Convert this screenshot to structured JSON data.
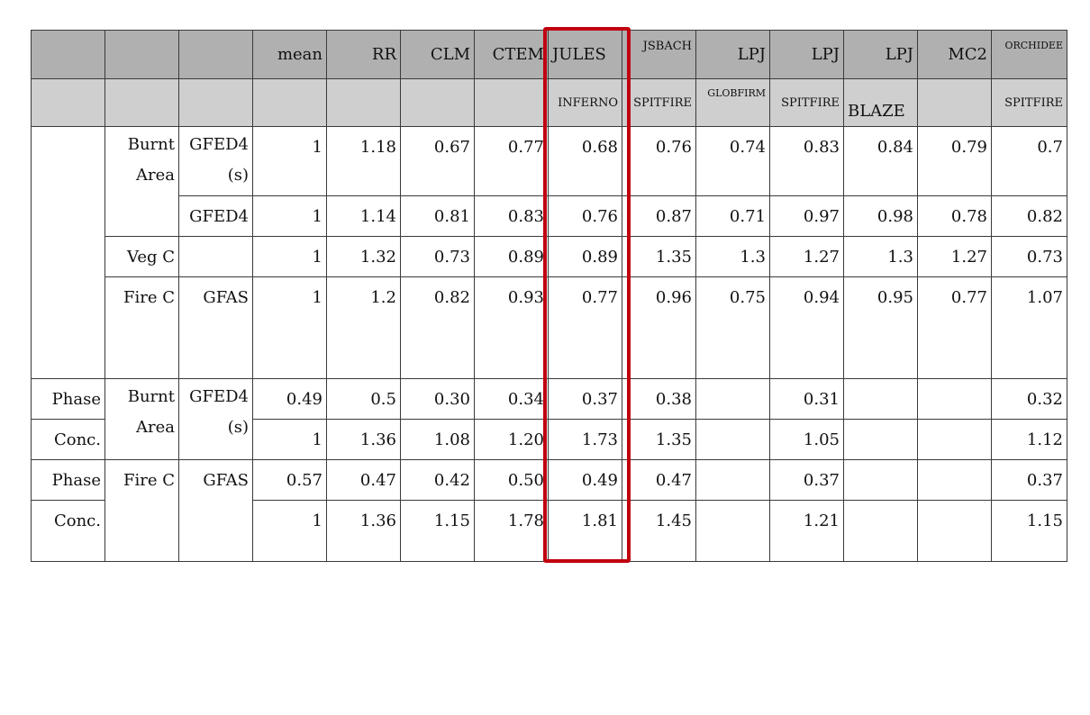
{
  "columns": {
    "mean": "mean",
    "rr": "RR",
    "clm": "CLM",
    "ctem": "CTEM",
    "jules": "JULES",
    "jules_sub": "INFERNO",
    "jsbach": "JSBACH",
    "jsbach_sub": "SPITFIRE",
    "lpj1": "LPJ",
    "lpj1_sub": "GLOBFIRM",
    "lpj2": "LPJ",
    "lpj2_sub": "SPITFIRE",
    "lpj3": "LPJ",
    "lpj3_sub": "BLAZE",
    "mc2": "MC2",
    "orchidee": "ORCHIDEE",
    "orchidee_sub": "SPITFIRE"
  },
  "rows": {
    "burnt_area": "Burnt Area",
    "gfed4s": "GFED4 (s)",
    "gfed4": "GFED4",
    "veg_c": "Veg C",
    "fire_c": "Fire C",
    "gfas": "GFAS",
    "phase": "Phase",
    "conc": "Conc."
  },
  "values": {
    "ba_gfed4s": [
      "1",
      "1.18",
      "0.67",
      "0.77",
      "0.68",
      "0.76",
      "0.74",
      "0.83",
      "0.84",
      "0.79",
      "0.7"
    ],
    "ba_gfed4": [
      "1",
      "1.14",
      "0.81",
      "0.83",
      "0.76",
      "0.87",
      "0.71",
      "0.97",
      "0.98",
      "0.78",
      "0.82"
    ],
    "vegc": [
      "1",
      "1.32",
      "0.73",
      "0.89",
      "0.89",
      "1.35",
      "1.3",
      "1.27",
      "1.3",
      "1.27",
      "0.73"
    ],
    "firec": [
      "1",
      "1.2",
      "0.82",
      "0.93",
      "0.77",
      "0.96",
      "0.75",
      "0.94",
      "0.95",
      "0.77",
      "1.07"
    ],
    "ba_phase": [
      "0.49",
      "0.5",
      "0.30",
      "0.34",
      "0.37",
      "0.38",
      "",
      "0.31",
      "",
      "",
      "0.32"
    ],
    "ba_conc": [
      "1",
      "1.36",
      "1.08",
      "1.20",
      "1.73",
      "1.35",
      "",
      "1.05",
      "",
      "",
      "1.12"
    ],
    "fc_phase": [
      "0.57",
      "0.47",
      "0.42",
      "0.50",
      "0.49",
      "0.47",
      "",
      "0.37",
      "",
      "",
      "0.37"
    ],
    "fc_conc": [
      "1",
      "1.36",
      "1.15",
      "1.78",
      "1.81",
      "1.45",
      "",
      "1.21",
      "",
      "",
      "1.15"
    ]
  },
  "highlight": {
    "column": "JULES INFERNO",
    "color": "#c0000e"
  }
}
